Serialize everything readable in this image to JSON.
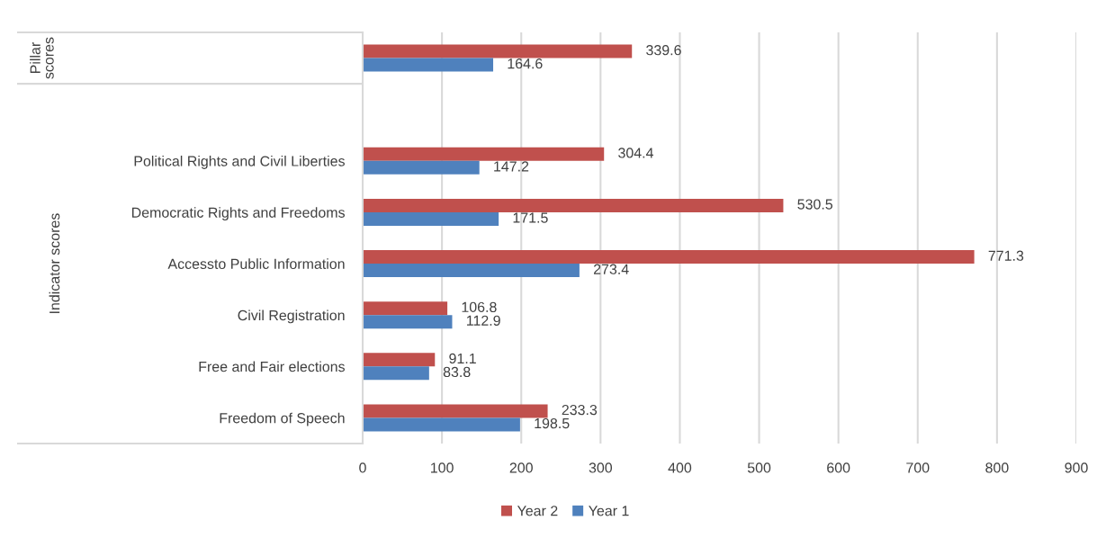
{
  "chart_data": {
    "type": "bar",
    "orientation": "horizontal",
    "categories": [
      null,
      null,
      "Political Rights and Civil Liberties",
      "Democratic Rights and Freedoms",
      "Accessto Public Information",
      "Civil Registration",
      "Free and Fair elections",
      "Freedom of Speech"
    ],
    "series": [
      {
        "name": "Year 2",
        "color": "#c0504d",
        "values": [
          339.6,
          null,
          304.4,
          530.5,
          771.3,
          106.8,
          91.1,
          233.3
        ]
      },
      {
        "name": "Year 1",
        "color": "#4f81bd",
        "values": [
          164.6,
          null,
          147.2,
          171.5,
          273.4,
          112.9,
          83.8,
          198.5
        ]
      }
    ],
    "xlim": [
      0,
      900
    ],
    "xticks": [
      0,
      100,
      200,
      300,
      400,
      500,
      600,
      700,
      800,
      900
    ],
    "grid": "x",
    "legend": "bottom",
    "data_labels": true,
    "annotations": [
      "Pillar scores",
      "Indicator scores"
    ]
  }
}
